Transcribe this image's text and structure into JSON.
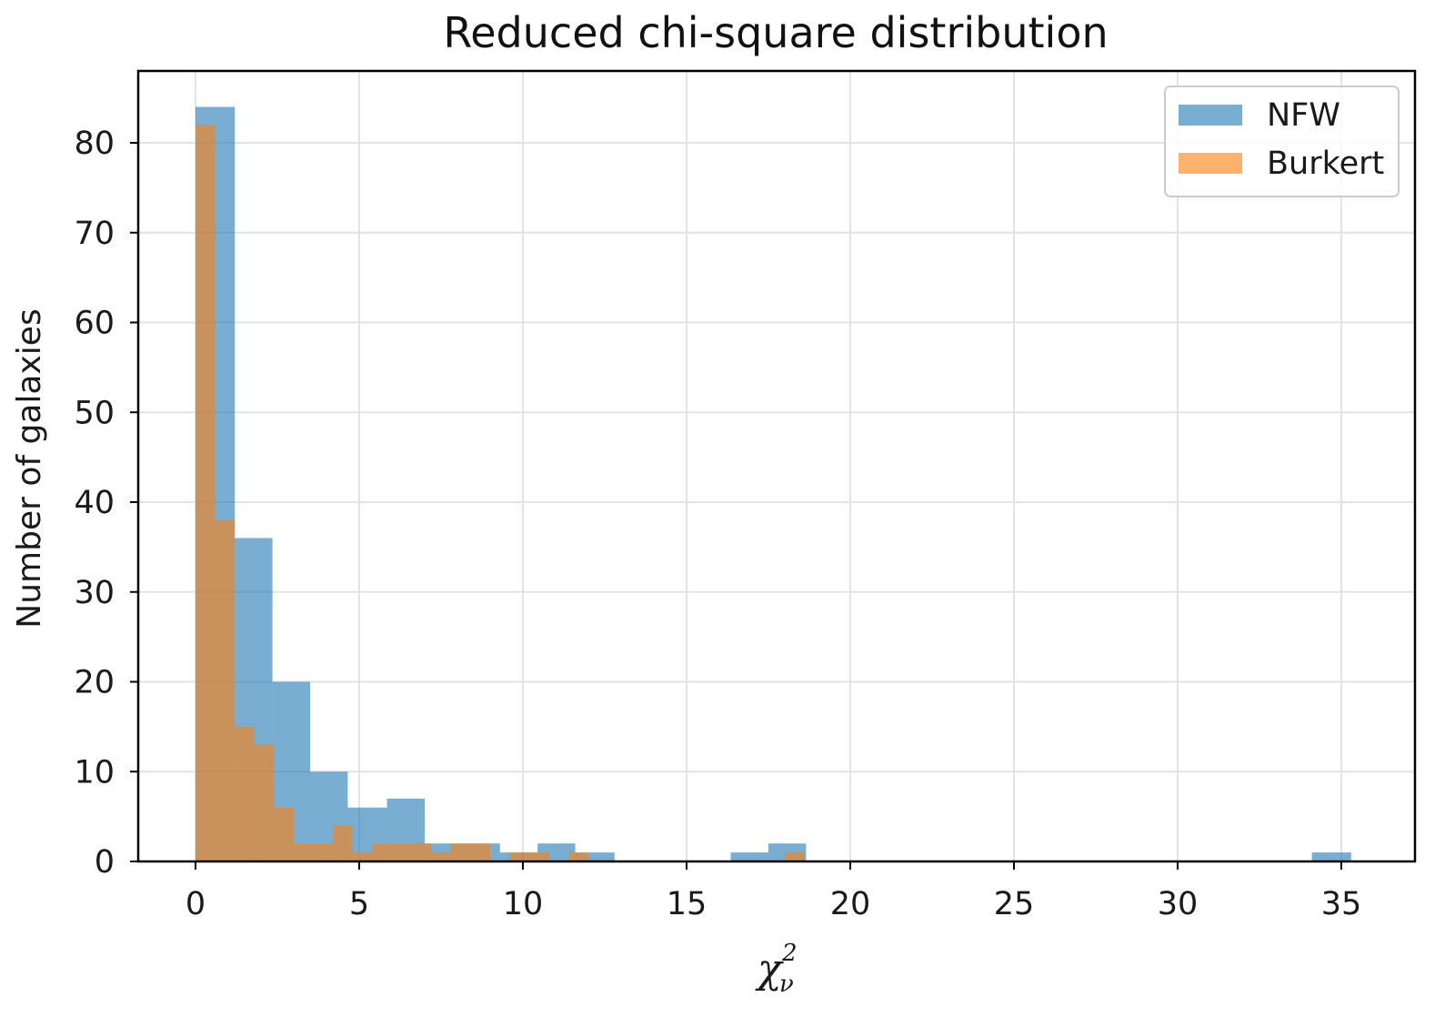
{
  "chart_data": {
    "type": "bar",
    "title": "Reduced chi-square distribution",
    "xlabel": "χ",
    "xlabel_sub": "ν",
    "xlabel_sup": "2",
    "ylabel": "Number of galaxies",
    "xlim": [
      -1.75,
      37.25
    ],
    "ylim": [
      0,
      88
    ],
    "xticks": [
      0,
      5,
      10,
      15,
      20,
      25,
      30,
      35
    ],
    "yticks": [
      0,
      10,
      20,
      30,
      40,
      50,
      60,
      70,
      80
    ],
    "grid": true,
    "legend_position": "top-right",
    "series": [
      {
        "name": "NFW",
        "color": "#1f77b4",
        "opacity": 0.6,
        "bins": [
          [
            0,
            1.2,
            84
          ],
          [
            1.2,
            2.35,
            36
          ],
          [
            2.35,
            3.5,
            20
          ],
          [
            3.5,
            4.65,
            10
          ],
          [
            4.65,
            5.85,
            6
          ],
          [
            5.85,
            7.0,
            7
          ],
          [
            7.0,
            8.15,
            2
          ],
          [
            8.15,
            9.3,
            2
          ],
          [
            9.3,
            10.45,
            1
          ],
          [
            10.45,
            11.6,
            2
          ],
          [
            11.6,
            12.8,
            1
          ],
          [
            16.35,
            17.5,
            1
          ],
          [
            17.5,
            18.65,
            2
          ],
          [
            34.1,
            35.3,
            1
          ]
        ]
      },
      {
        "name": "Burkert",
        "color": "#ff7f0e",
        "opacity": 0.6,
        "bins": [
          [
            0,
            0.6,
            82
          ],
          [
            0.6,
            1.2,
            38
          ],
          [
            1.2,
            1.8,
            15
          ],
          [
            1.8,
            2.4,
            13
          ],
          [
            2.4,
            3.0,
            6
          ],
          [
            3.0,
            3.6,
            2
          ],
          [
            3.6,
            4.2,
            2
          ],
          [
            4.2,
            4.8,
            4
          ],
          [
            4.8,
            5.4,
            1
          ],
          [
            5.4,
            6.0,
            2
          ],
          [
            6.0,
            6.6,
            2
          ],
          [
            6.6,
            7.2,
            2
          ],
          [
            7.2,
            7.8,
            1
          ],
          [
            7.8,
            8.4,
            2
          ],
          [
            8.4,
            9.0,
            2
          ],
          [
            9.0,
            9.6,
            0
          ],
          [
            9.6,
            10.2,
            1
          ],
          [
            10.2,
            10.8,
            1
          ],
          [
            10.8,
            11.4,
            0
          ],
          [
            11.4,
            12.0,
            1
          ],
          [
            18.0,
            18.6,
            1
          ]
        ]
      }
    ]
  }
}
